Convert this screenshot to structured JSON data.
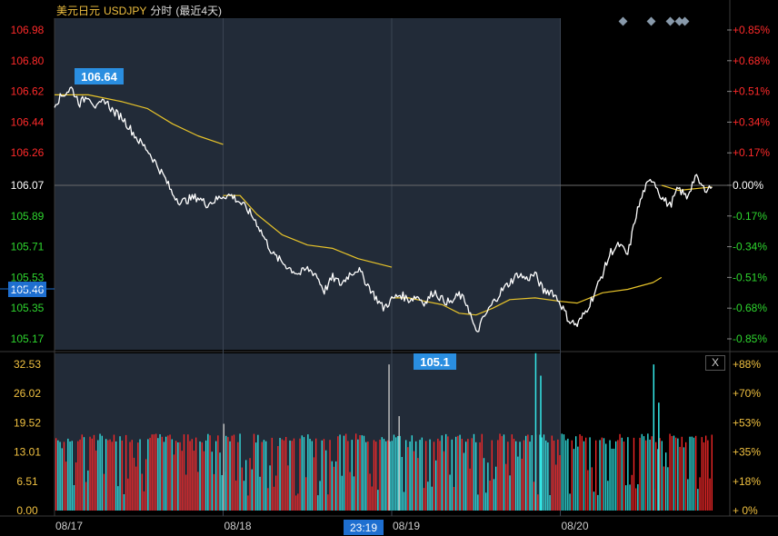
{
  "header": {
    "pair_name": "美元日元",
    "symbol": "USDJPY",
    "mode": "分时",
    "range": "(最近4天)"
  },
  "close_button_label": "X",
  "crosshair": {
    "price_label": "105.46",
    "time_label": "23:19"
  },
  "chart_data": [
    {
      "type": "line",
      "title": "",
      "x_ticks": [
        "08/17",
        "08/18",
        "08/19",
        "08/20"
      ],
      "ylim": [
        105.1,
        107.05
      ],
      "y_ticks_left": [
        "106.98",
        "106.80",
        "106.62",
        "106.44",
        "106.26",
        "106.07",
        "105.89",
        "105.71",
        "105.53",
        "105.35",
        "105.17"
      ],
      "y_ticks_right": [
        "+0.85%",
        "+0.68%",
        "+0.51%",
        "+0.34%",
        "+0.17%",
        "0.00%",
        "-0.17%",
        "-0.34%",
        "-0.51%",
        "-0.68%",
        "-0.85%"
      ],
      "reference_price": 106.07,
      "price_colors": {
        "up": "#ff2a2a",
        "flat": "#ffffff",
        "down": "#2ed62e"
      },
      "annotations": [
        {
          "text": "106.64",
          "day": 0,
          "price": 106.64,
          "kind": "high"
        },
        {
          "text": "105.1",
          "day": 2,
          "price": 105.1,
          "kind": "low"
        }
      ],
      "series": [
        {
          "role": "price",
          "color": "#ffffff",
          "points": [
            [
              0.0,
              106.55
            ],
            [
              0.05,
              106.6
            ],
            [
              0.1,
              106.64
            ],
            [
              0.15,
              106.55
            ],
            [
              0.2,
              106.6
            ],
            [
              0.25,
              106.52
            ],
            [
              0.3,
              106.57
            ],
            [
              0.35,
              106.5
            ],
            [
              0.4,
              106.47
            ],
            [
              0.45,
              106.4
            ],
            [
              0.5,
              106.33
            ],
            [
              0.55,
              106.28
            ],
            [
              0.6,
              106.2
            ],
            [
              0.65,
              106.12
            ],
            [
              0.7,
              106.02
            ],
            [
              0.75,
              105.97
            ],
            [
              0.8,
              105.99
            ],
            [
              0.85,
              106.0
            ],
            [
              0.9,
              105.96
            ],
            [
              0.95,
              105.98
            ],
            [
              1.0,
              106.01
            ],
            [
              1.05,
              106.01
            ],
            [
              1.1,
              105.97
            ],
            [
              1.15,
              105.92
            ],
            [
              1.2,
              105.85
            ],
            [
              1.25,
              105.75
            ],
            [
              1.3,
              105.66
            ],
            [
              1.35,
              105.62
            ],
            [
              1.4,
              105.58
            ],
            [
              1.45,
              105.55
            ],
            [
              1.5,
              105.58
            ],
            [
              1.55,
              105.55
            ],
            [
              1.6,
              105.45
            ],
            [
              1.65,
              105.53
            ],
            [
              1.7,
              105.49
            ],
            [
              1.75,
              105.55
            ],
            [
              1.8,
              105.58
            ],
            [
              1.85,
              105.5
            ],
            [
              1.9,
              105.42
            ],
            [
              1.95,
              105.35
            ],
            [
              2.0,
              105.4
            ],
            [
              2.05,
              105.43
            ],
            [
              2.1,
              105.4
            ],
            [
              2.15,
              105.42
            ],
            [
              2.2,
              105.38
            ],
            [
              2.25,
              105.45
            ],
            [
              2.3,
              105.4
            ],
            [
              2.35,
              105.38
            ],
            [
              2.4,
              105.43
            ],
            [
              2.45,
              105.37
            ],
            [
              2.5,
              105.2
            ],
            [
              2.55,
              105.3
            ],
            [
              2.6,
              105.38
            ],
            [
              2.65,
              105.45
            ],
            [
              2.7,
              105.5
            ],
            [
              2.75,
              105.55
            ],
            [
              2.8,
              105.52
            ],
            [
              2.85,
              105.55
            ],
            [
              2.9,
              105.45
            ],
            [
              2.95,
              105.45
            ],
            [
              3.0,
              105.38
            ],
            [
              3.05,
              105.28
            ],
            [
              3.1,
              105.25
            ],
            [
              3.15,
              105.33
            ],
            [
              3.2,
              105.43
            ],
            [
              3.25,
              105.55
            ],
            [
              3.3,
              105.68
            ],
            [
              3.35,
              105.72
            ],
            [
              3.4,
              105.66
            ],
            [
              3.45,
              105.9
            ],
            [
              3.5,
              106.05
            ],
            [
              3.55,
              106.11
            ],
            [
              3.6,
              106.0
            ],
            [
              3.65,
              105.95
            ],
            [
              3.7,
              106.05
            ],
            [
              3.75,
              106.0
            ],
            [
              3.8,
              106.12
            ],
            [
              3.85,
              106.05
            ],
            [
              3.9,
              106.06
            ]
          ]
        },
        {
          "role": "average",
          "color": "#e8c42a",
          "points": [
            [
              0.0,
              106.6
            ],
            [
              0.2,
              106.6
            ],
            [
              0.4,
              106.56
            ],
            [
              0.55,
              106.52
            ],
            [
              0.7,
              106.43
            ],
            [
              0.85,
              106.36
            ],
            [
              1.0,
              106.31
            ],
            [
              1.0,
              106.01
            ],
            [
              1.1,
              106.01
            ],
            [
              1.2,
              105.9
            ],
            [
              1.35,
              105.78
            ],
            [
              1.5,
              105.72
            ],
            [
              1.65,
              105.7
            ],
            [
              1.8,
              105.64
            ],
            [
              2.0,
              105.59
            ],
            [
              2.0,
              105.41
            ],
            [
              2.1,
              105.41
            ],
            [
              2.2,
              105.39
            ],
            [
              2.3,
              105.37
            ],
            [
              2.4,
              105.32
            ],
            [
              2.5,
              105.31
            ],
            [
              2.6,
              105.35
            ],
            [
              2.7,
              105.4
            ],
            [
              2.85,
              105.41
            ],
            [
              3.0,
              105.39
            ],
            [
              3.1,
              105.38
            ],
            [
              3.25,
              105.44
            ],
            [
              3.4,
              105.46
            ],
            [
              3.55,
              105.5
            ],
            [
              3.6,
              105.53
            ],
            [
              3.6,
              106.07
            ],
            [
              3.7,
              106.04
            ],
            [
              3.8,
              106.05
            ],
            [
              3.9,
              106.06
            ]
          ]
        }
      ]
    },
    {
      "type": "bar",
      "title": "",
      "ylim": [
        0,
        37
      ],
      "y_ticks_left": [
        "32.53",
        "26.02",
        "19.52",
        "13.01",
        "6.51",
        "0.00"
      ],
      "y_ticks_right": [
        "+88%",
        "+70%",
        "+53%",
        "+35%",
        "+18%",
        "+ 0%"
      ],
      "bar_colors": {
        "up": "#ff2a2a",
        "down": "#35e8e8"
      },
      "typical_volume": 16.8,
      "spikes": [
        {
          "day": 1.0,
          "value": 19.3
        },
        {
          "day": 1.98,
          "value": 32.5
        },
        {
          "day": 2.04,
          "value": 21.0
        },
        {
          "day": 2.85,
          "value": 35.0
        },
        {
          "day": 2.88,
          "value": 30.0
        },
        {
          "day": 3.55,
          "value": 32.5
        },
        {
          "day": 3.58,
          "value": 24.0
        }
      ]
    }
  ]
}
